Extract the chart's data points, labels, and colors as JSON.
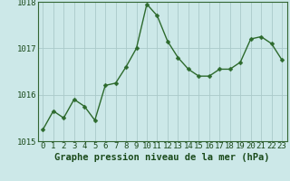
{
  "x": [
    0,
    1,
    2,
    3,
    4,
    5,
    6,
    7,
    8,
    9,
    10,
    11,
    12,
    13,
    14,
    15,
    16,
    17,
    18,
    19,
    20,
    21,
    22,
    23
  ],
  "y": [
    1015.25,
    1015.65,
    1015.5,
    1015.9,
    1015.75,
    1015.45,
    1016.2,
    1016.25,
    1016.6,
    1017.0,
    1017.95,
    1017.7,
    1017.15,
    1016.8,
    1016.55,
    1016.4,
    1016.4,
    1016.55,
    1016.55,
    1016.7,
    1017.2,
    1017.25,
    1017.1,
    1016.75
  ],
  "line_color": "#2d6a2d",
  "marker_color": "#2d6a2d",
  "bg_color": "#cce8e8",
  "grid_color": "#aacaca",
  "text_color": "#1a4a1a",
  "xlabel": "Graphe pression niveau de la mer (hPa)",
  "ylim": [
    1015.0,
    1018.0
  ],
  "yticks": [
    1015,
    1016,
    1017,
    1018
  ],
  "xticks": [
    0,
    1,
    2,
    3,
    4,
    5,
    6,
    7,
    8,
    9,
    10,
    11,
    12,
    13,
    14,
    15,
    16,
    17,
    18,
    19,
    20,
    21,
    22,
    23
  ],
  "marker_size": 2.5,
  "line_width": 1.0,
  "xlabel_fontsize": 7.5,
  "tick_fontsize": 6.5,
  "border_color": "#336633"
}
